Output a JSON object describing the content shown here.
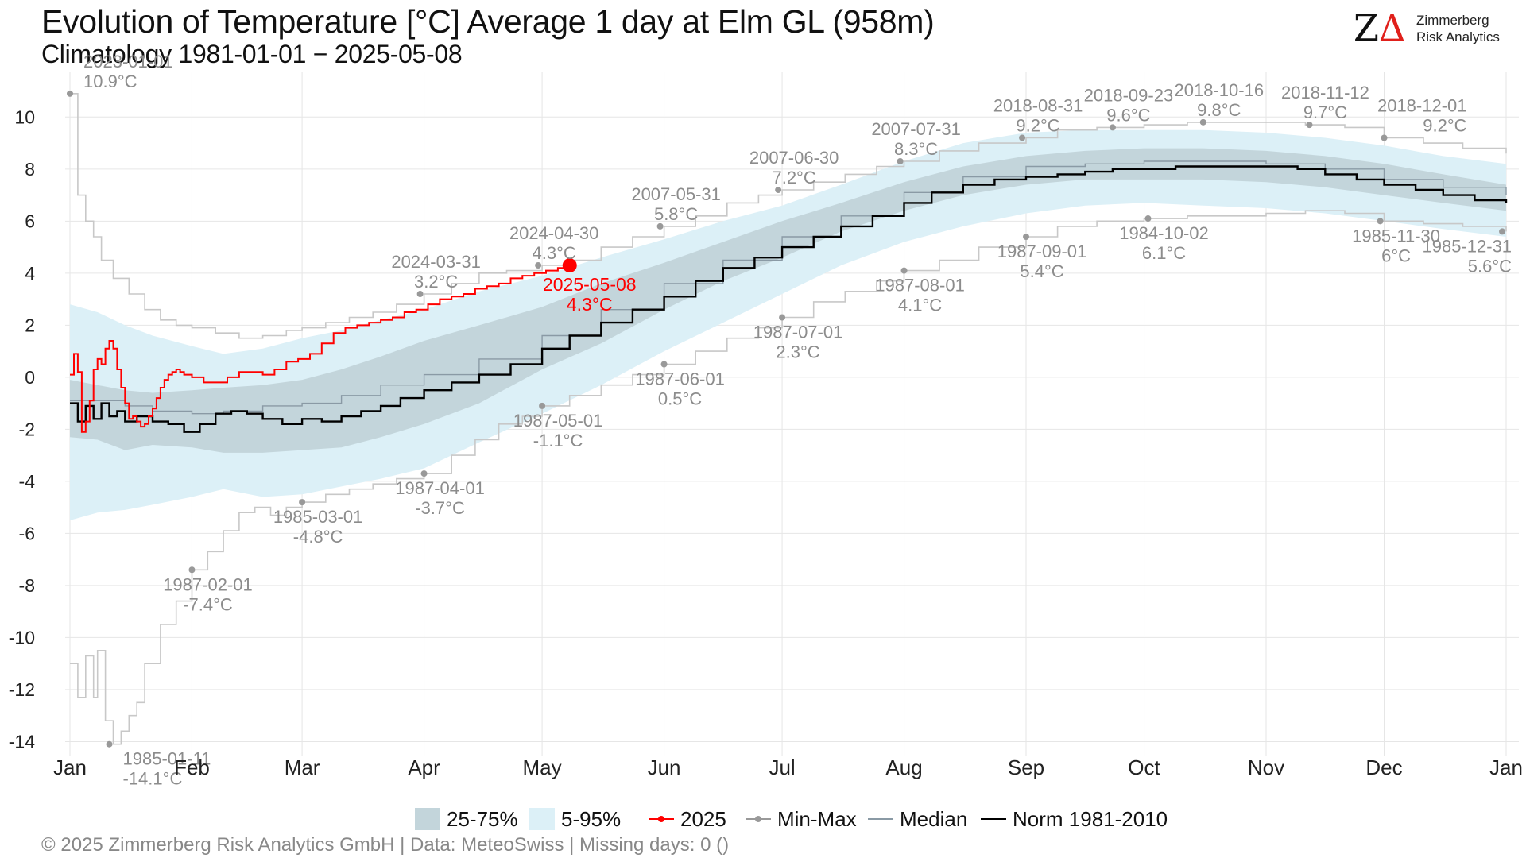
{
  "header": {
    "title": "Evolution of Temperature [°C] Average 1 day at Elm  GL (958m)",
    "subtitle": "Climatology 1981-01-01 − 2025-05-08"
  },
  "logo": {
    "mark_z": "Z",
    "mark_delta": "Δ",
    "line1": "Zimmerberg",
    "line2": "Risk Analytics"
  },
  "footer": {
    "copyright": "©  2025 Zimmerberg Risk Analytics GmbH | Data: MeteoSwiss | Missing days: 0 ()"
  },
  "legend": {
    "items": [
      {
        "label": "25-75%",
        "color": "#c3d5db",
        "kind": "fill"
      },
      {
        "label": "5-95%",
        "color": "#dcf0f7",
        "kind": "fill"
      },
      {
        "label": "2025",
        "color": "#ff0000",
        "kind": "line-point"
      },
      {
        "label": "Min-Max",
        "color": "#999999",
        "kind": "line-point"
      },
      {
        "label": "Median",
        "color": "#8a9aa5",
        "kind": "line"
      },
      {
        "label": "Norm 1981-2010",
        "color": "#000000",
        "kind": "line"
      }
    ]
  },
  "colors": {
    "band_inner": "#c3d5db",
    "band_outer": "#dcf0f7",
    "current_year": "#ff0000",
    "minmax": "#c8c8c8",
    "minmax_point": "#999999",
    "annotation": "#8c8c8c",
    "median": "#8a9aa5",
    "norm": "#000000",
    "grid": "#e6e6e6"
  },
  "chart_data": {
    "type": "line",
    "x_unit": "day of year",
    "x_ticks": [
      {
        "label": "Jan",
        "day": 1
      },
      {
        "label": "Feb",
        "day": 32
      },
      {
        "label": "Mar",
        "day": 60
      },
      {
        "label": "Apr",
        "day": 91
      },
      {
        "label": "May",
        "day": 121
      },
      {
        "label": "Jun",
        "day": 152
      },
      {
        "label": "Jul",
        "day": 182
      },
      {
        "label": "Aug",
        "day": 213
      },
      {
        "label": "Sep",
        "day": 244
      },
      {
        "label": "Oct",
        "day": 274
      },
      {
        "label": "Nov",
        "day": 305
      },
      {
        "label": "Dec",
        "day": 335
      },
      {
        "label": "Jan",
        "day": 366
      }
    ],
    "xlim": [
      1,
      366
    ],
    "ylim": [
      -14.2,
      11.2
    ],
    "y_ticks": [
      10,
      8,
      6,
      4,
      2,
      0,
      -2,
      -4,
      -6,
      -8,
      -10,
      -12,
      -14
    ],
    "grid": true,
    "legend_position": "bottom",
    "series": [
      {
        "name": "5-95%",
        "kind": "band",
        "x": [
          1,
          8,
          15,
          22,
          32,
          40,
          50,
          60,
          70,
          80,
          91,
          105,
          121,
          136,
          152,
          167,
          182,
          197,
          213,
          228,
          244,
          259,
          274,
          289,
          305,
          320,
          335,
          350,
          366
        ],
        "lower": [
          -5.5,
          -5.2,
          -5.1,
          -4.9,
          -4.6,
          -4.3,
          -4.6,
          -4.5,
          -4.2,
          -3.9,
          -3.5,
          -2.5,
          -1.4,
          -0.3,
          1.0,
          2.1,
          3.2,
          4.3,
          5.2,
          5.8,
          6.3,
          6.6,
          6.7,
          6.6,
          6.5,
          6.3,
          6.0,
          5.7,
          5.4
        ],
        "upper": [
          2.8,
          2.5,
          2.0,
          1.6,
          1.2,
          0.9,
          1.1,
          1.5,
          1.8,
          2.2,
          2.6,
          3.3,
          3.9,
          4.6,
          5.3,
          6.0,
          6.6,
          7.4,
          8.3,
          9.0,
          9.4,
          9.5,
          9.5,
          9.5,
          9.4,
          9.2,
          8.9,
          8.5,
          8.2
        ]
      },
      {
        "name": "25-75%",
        "kind": "band",
        "x": [
          1,
          8,
          15,
          22,
          32,
          40,
          50,
          60,
          70,
          80,
          91,
          105,
          121,
          136,
          152,
          167,
          182,
          197,
          213,
          228,
          244,
          259,
          274,
          289,
          305,
          320,
          335,
          350,
          366
        ],
        "lower": [
          -2.3,
          -2.4,
          -2.8,
          -2.6,
          -2.7,
          -2.9,
          -2.9,
          -2.8,
          -2.7,
          -2.3,
          -1.8,
          -1.0,
          0.3,
          1.3,
          2.6,
          3.7,
          4.6,
          5.6,
          6.4,
          7.0,
          7.4,
          7.6,
          7.6,
          7.6,
          7.5,
          7.3,
          7.0,
          6.7,
          6.4
        ],
        "upper": [
          -0.1,
          -0.3,
          -0.5,
          -0.6,
          -0.5,
          -0.4,
          -0.3,
          -0.1,
          0.3,
          0.8,
          1.4,
          2.0,
          2.7,
          3.6,
          4.4,
          5.2,
          6.0,
          6.7,
          7.5,
          8.1,
          8.5,
          8.7,
          8.8,
          8.8,
          8.7,
          8.5,
          8.2,
          7.8,
          7.4
        ]
      },
      {
        "name": "Median",
        "kind": "line",
        "x": [
          1,
          8,
          15,
          22,
          32,
          40,
          50,
          60,
          70,
          80,
          91,
          105,
          121,
          136,
          152,
          167,
          182,
          197,
          213,
          228,
          244,
          259,
          274,
          289,
          305,
          320,
          335,
          350,
          366
        ],
        "y": [
          -0.9,
          -0.9,
          -1.1,
          -1.3,
          -1.4,
          -1.3,
          -1.1,
          -1.0,
          -0.7,
          -0.3,
          0.1,
          0.7,
          1.6,
          2.6,
          3.6,
          4.5,
          5.4,
          6.2,
          7.1,
          7.7,
          8.1,
          8.2,
          8.3,
          8.3,
          8.2,
          8.0,
          7.6,
          7.3,
          7.0
        ]
      },
      {
        "name": "Norm 1981-2010",
        "kind": "line",
        "x": [
          1,
          3,
          5,
          7,
          9,
          11,
          13,
          15,
          18,
          22,
          26,
          30,
          34,
          38,
          42,
          46,
          50,
          55,
          60,
          65,
          70,
          75,
          80,
          85,
          91,
          98,
          105,
          113,
          121,
          128,
          136,
          144,
          152,
          160,
          167,
          175,
          182,
          190,
          197,
          205,
          213,
          220,
          228,
          236,
          244,
          252,
          259,
          266,
          274,
          282,
          289,
          297,
          305,
          313,
          320,
          328,
          335,
          343,
          350,
          358,
          366
        ],
        "y": [
          -1.0,
          -1.7,
          -1.1,
          -1.6,
          -1.0,
          -1.5,
          -1.3,
          -1.7,
          -1.5,
          -1.7,
          -1.8,
          -2.1,
          -1.8,
          -1.4,
          -1.3,
          -1.4,
          -1.6,
          -1.8,
          -1.6,
          -1.7,
          -1.5,
          -1.3,
          -1.1,
          -0.8,
          -0.5,
          -0.2,
          0.1,
          0.5,
          1.1,
          1.6,
          2.1,
          2.6,
          3.1,
          3.7,
          4.2,
          4.6,
          5.0,
          5.4,
          5.8,
          6.2,
          6.7,
          7.1,
          7.4,
          7.6,
          7.7,
          7.8,
          7.9,
          8.0,
          8.0,
          8.1,
          8.1,
          8.1,
          8.1,
          8.0,
          7.8,
          7.6,
          7.4,
          7.2,
          7.0,
          6.8,
          6.7
        ]
      },
      {
        "name": "2025",
        "kind": "line",
        "x": [
          1,
          2,
          3,
          4,
          5,
          6,
          7,
          8,
          9,
          10,
          11,
          12,
          13,
          14,
          15,
          16,
          17,
          18,
          19,
          20,
          21,
          22,
          23,
          24,
          25,
          26,
          27,
          28,
          29,
          30,
          32,
          35,
          38,
          41,
          44,
          47,
          50,
          53,
          56,
          59,
          62,
          65,
          68,
          71,
          74,
          77,
          80,
          83,
          86,
          89,
          92,
          95,
          98,
          101,
          104,
          107,
          110,
          113,
          116,
          119,
          122,
          125,
          128
        ],
        "y": [
          0.1,
          0.9,
          0.2,
          -2.1,
          -1.7,
          -0.9,
          0.3,
          0.7,
          0.5,
          1.1,
          1.4,
          1.1,
          0.3,
          -0.4,
          -1.0,
          -1.6,
          -1.5,
          -1.7,
          -1.9,
          -1.8,
          -1.5,
          -1.2,
          -0.8,
          -0.4,
          -0.1,
          0.1,
          0.2,
          0.3,
          0.2,
          0.1,
          0.0,
          -0.2,
          -0.2,
          0.0,
          0.2,
          0.2,
          0.1,
          0.3,
          0.6,
          0.7,
          0.9,
          1.3,
          1.7,
          1.9,
          2.0,
          2.1,
          2.2,
          2.3,
          2.5,
          2.6,
          2.8,
          3.0,
          3.1,
          3.2,
          3.4,
          3.5,
          3.6,
          3.8,
          3.9,
          4.0,
          4.1,
          4.2,
          4.3
        ]
      },
      {
        "name": "Min",
        "kind": "minmax",
        "x": [
          1,
          3,
          5,
          7,
          8,
          10,
          12,
          14,
          16,
          18,
          20,
          24,
          28,
          32,
          36,
          40,
          44,
          48,
          52,
          56,
          60,
          66,
          72,
          78,
          84,
          91,
          98,
          104,
          110,
          116,
          121,
          128,
          136,
          144,
          152,
          160,
          168,
          176,
          182,
          190,
          198,
          206,
          213,
          222,
          232,
          244,
          252,
          262,
          274,
          285,
          295,
          305,
          315,
          325,
          335,
          345,
          355,
          366
        ],
        "y": [
          -11.0,
          -12.3,
          -10.7,
          -12.3,
          -10.5,
          -13.2,
          -14.1,
          -13.6,
          -13.0,
          -12.5,
          -11.0,
          -9.5,
          -8.6,
          -7.4,
          -6.7,
          -5.9,
          -5.2,
          -5.0,
          -5.3,
          -5.0,
          -4.8,
          -4.5,
          -4.3,
          -4.1,
          -3.9,
          -3.7,
          -3.0,
          -2.4,
          -1.8,
          -1.5,
          -1.1,
          -0.7,
          -0.3,
          0.1,
          0.5,
          1.0,
          1.5,
          1.9,
          2.3,
          2.9,
          3.3,
          3.7,
          4.1,
          4.5,
          5.0,
          5.4,
          5.8,
          6.0,
          6.1,
          6.2,
          6.2,
          6.3,
          6.4,
          6.3,
          6.0,
          5.9,
          5.8,
          5.6
        ]
      },
      {
        "name": "Max",
        "kind": "minmax",
        "x": [
          1,
          3,
          5,
          7,
          9,
          12,
          16,
          20,
          24,
          28,
          32,
          38,
          44,
          50,
          56,
          60,
          66,
          72,
          78,
          84,
          91,
          98,
          105,
          112,
          121,
          128,
          136,
          144,
          152,
          160,
          168,
          176,
          182,
          190,
          198,
          206,
          213,
          222,
          232,
          244,
          252,
          262,
          274,
          285,
          295,
          305,
          315,
          325,
          335,
          345,
          355,
          366
        ],
        "y": [
          10.9,
          7.0,
          6.0,
          5.4,
          4.5,
          3.8,
          3.2,
          2.6,
          2.2,
          2.0,
          1.9,
          1.7,
          1.5,
          1.6,
          1.8,
          1.9,
          2.1,
          2.3,
          2.5,
          2.8,
          3.2,
          3.6,
          4.0,
          4.1,
          4.3,
          4.5,
          5.0,
          5.4,
          5.8,
          6.2,
          6.7,
          7.0,
          7.2,
          7.5,
          7.8,
          8.1,
          8.3,
          8.7,
          9.0,
          9.2,
          9.5,
          9.6,
          9.7,
          9.8,
          9.8,
          9.8,
          9.7,
          9.6,
          9.2,
          9.0,
          8.8,
          8.6
        ]
      }
    ],
    "annotations": [
      {
        "date": "2023-01-01",
        "value": "10.9°C",
        "day": 1,
        "y": 10.9,
        "series": "Max"
      },
      {
        "date": "2024-03-31",
        "value": "3.2°C",
        "day": 90,
        "y": 3.2,
        "series": "Max"
      },
      {
        "date": "2024-04-30",
        "value": "4.3°C",
        "day": 120,
        "y": 4.3,
        "series": "Max"
      },
      {
        "date": "2007-05-31",
        "value": "5.8°C",
        "day": 151,
        "y": 5.8,
        "series": "Max"
      },
      {
        "date": "2007-06-30",
        "value": "7.2°C",
        "day": 181,
        "y": 7.2,
        "series": "Max"
      },
      {
        "date": "2007-07-31",
        "value": "8.3°C",
        "day": 212,
        "y": 8.3,
        "series": "Max"
      },
      {
        "date": "2018-08-31",
        "value": "9.2°C",
        "day": 243,
        "y": 9.2,
        "series": "Max"
      },
      {
        "date": "2018-09-23",
        "value": "9.6°C",
        "day": 266,
        "y": 9.6,
        "series": "Max"
      },
      {
        "date": "2018-10-16",
        "value": "9.8°C",
        "day": 289,
        "y": 9.8,
        "series": "Max"
      },
      {
        "date": "2018-11-12",
        "value": "9.7°C",
        "day": 316,
        "y": 9.7,
        "series": "Max"
      },
      {
        "date": "2018-12-01",
        "value": "9.2°C",
        "day": 335,
        "y": 9.2,
        "series": "Max"
      },
      {
        "date": "1985-01-11",
        "value": "-14.1°C",
        "day": 11,
        "y": -14.1,
        "series": "Min"
      },
      {
        "date": "1987-02-01",
        "value": "-7.4°C",
        "day": 32,
        "y": -7.4,
        "series": "Min"
      },
      {
        "date": "1985-03-01",
        "value": "-4.8°C",
        "day": 60,
        "y": -4.8,
        "series": "Min"
      },
      {
        "date": "1987-04-01",
        "value": "-3.7°C",
        "day": 91,
        "y": -3.7,
        "series": "Min"
      },
      {
        "date": "1987-05-01",
        "value": "-1.1°C",
        "day": 121,
        "y": -1.1,
        "series": "Min"
      },
      {
        "date": "1987-06-01",
        "value": "0.5°C",
        "day": 152,
        "y": 0.5,
        "series": "Min"
      },
      {
        "date": "1987-07-01",
        "value": "2.3°C",
        "day": 182,
        "y": 2.3,
        "series": "Min"
      },
      {
        "date": "1987-08-01",
        "value": "4.1°C",
        "day": 213,
        "y": 4.1,
        "series": "Min"
      },
      {
        "date": "1987-09-01",
        "value": "5.4°C",
        "day": 244,
        "y": 5.4,
        "series": "Min"
      },
      {
        "date": "1984-10-02",
        "value": "6.1°C",
        "day": 275,
        "y": 6.1,
        "series": "Min"
      },
      {
        "date": "1985-11-30",
        "value": "6°C",
        "day": 334,
        "y": 6.0,
        "series": "Min"
      },
      {
        "date": "1985-12-31",
        "value": "5.6°C",
        "day": 365,
        "y": 5.6,
        "series": "Min"
      }
    ],
    "current": {
      "date": "2025-05-08",
      "value": "4.3°C",
      "day": 128,
      "y": 4.3
    }
  }
}
